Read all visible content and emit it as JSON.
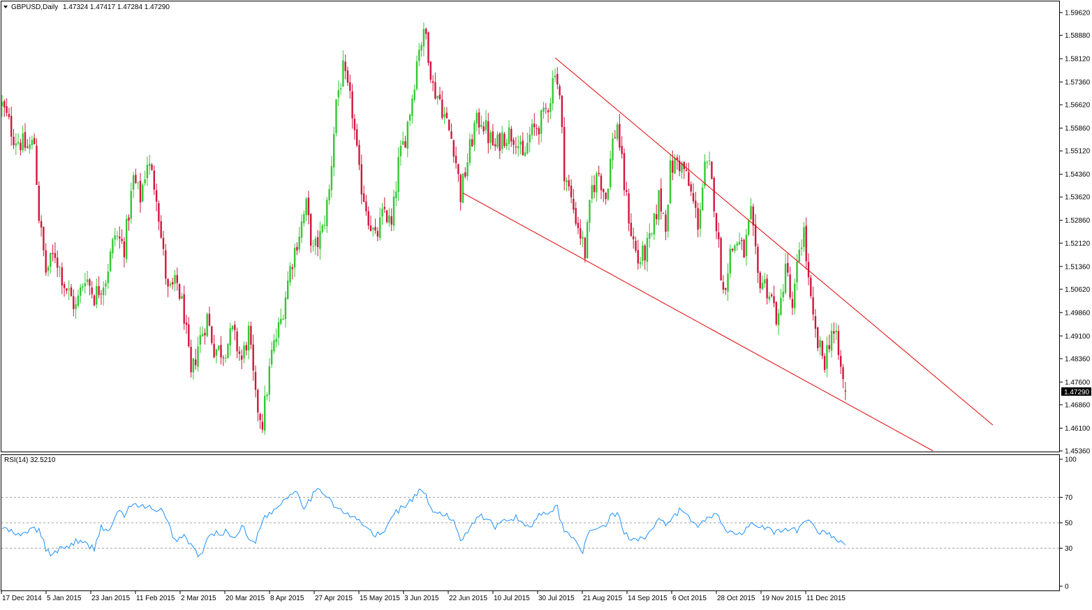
{
  "header": {
    "symbol_line": "GBPUSD,Daily",
    "ohlc": "1.47324 1.47417 1.47284 1.47290",
    "current_price": "1.47290"
  },
  "rsi_header": {
    "label": "RSI(14) 32.5210"
  },
  "colors": {
    "bull": "#32c832",
    "bear": "#d2143c",
    "trendline": "#e00000",
    "rsi": "#1e90ff",
    "frame": "#000000",
    "grid_dash": "#a0a0a0"
  },
  "chart_data": [
    {
      "type": "candlestick",
      "title": "GBPUSD,Daily",
      "y_ticks": [
        "1.59620",
        "1.58880",
        "1.58120",
        "1.57360",
        "1.56620",
        "1.55860",
        "1.55120",
        "1.54360",
        "1.53620",
        "1.52860",
        "1.52120",
        "1.51360",
        "1.50620",
        "1.49860",
        "1.49100",
        "1.48360",
        "1.47600",
        "1.46860",
        "1.46100",
        "1.45360"
      ],
      "ylim": [
        1.4536,
        1.5962
      ],
      "x_tick_labels": [
        "17 Dec 2014",
        "5 Jan 2015",
        "23 Jan 2015",
        "11 Feb 2015",
        "2 Mar 2015",
        "20 Mar 2015",
        "8 Apr 2015",
        "27 Apr 2015",
        "15 May 2015",
        "3 Jun 2015",
        "22 Jun 2015",
        "10 Jul 2015",
        "30 Jul 2015",
        "21 Aug 2015",
        "14 Sep 2015",
        "6 Oct 2015",
        "28 Oct 2015",
        "19 Nov 2015",
        "11 Dec 2015"
      ],
      "last_close": 1.4729,
      "anchors": [
        [
          0,
          1.566
        ],
        [
          5,
          1.556
        ],
        [
          11,
          1.552
        ],
        [
          14,
          1.554
        ],
        [
          16,
          1.53
        ],
        [
          19,
          1.512
        ],
        [
          23,
          1.518
        ],
        [
          27,
          1.508
        ],
        [
          32,
          1.5
        ],
        [
          36,
          1.511
        ],
        [
          40,
          1.504
        ],
        [
          45,
          1.51
        ],
        [
          49,
          1.524
        ],
        [
          53,
          1.52
        ],
        [
          57,
          1.542
        ],
        [
          60,
          1.536
        ],
        [
          63,
          1.548
        ],
        [
          67,
          1.538
        ],
        [
          69,
          1.523
        ],
        [
          72,
          1.505
        ],
        [
          76,
          1.508
        ],
        [
          79,
          1.498
        ],
        [
          82,
          1.477
        ],
        [
          85,
          1.488
        ],
        [
          89,
          1.497
        ],
        [
          92,
          1.487
        ],
        [
          96,
          1.486
        ],
        [
          100,
          1.492
        ],
        [
          104,
          1.483
        ],
        [
          107,
          1.492
        ],
        [
          110,
          1.47
        ],
        [
          113,
          1.463
        ],
        [
          117,
          1.485
        ],
        [
          121,
          1.496
        ],
        [
          125,
          1.513
        ],
        [
          128,
          1.522
        ],
        [
          132,
          1.533
        ],
        [
          135,
          1.518
        ],
        [
          139,
          1.525
        ],
        [
          142,
          1.538
        ],
        [
          145,
          1.568
        ],
        [
          148,
          1.577
        ],
        [
          152,
          1.564
        ],
        [
          155,
          1.543
        ],
        [
          159,
          1.53
        ],
        [
          162,
          1.522
        ],
        [
          166,
          1.532
        ],
        [
          169,
          1.526
        ],
        [
          172,
          1.547
        ],
        [
          175,
          1.556
        ],
        [
          178,
          1.569
        ],
        [
          181,
          1.586
        ],
        [
          184,
          1.589
        ],
        [
          187,
          1.572
        ],
        [
          190,
          1.568
        ],
        [
          193,
          1.56
        ],
        [
          196,
          1.553
        ],
        [
          199,
          1.537
        ],
        [
          202,
          1.548
        ],
        [
          205,
          1.559
        ],
        [
          208,
          1.562
        ],
        [
          211,
          1.556
        ],
        [
          214,
          1.552
        ],
        [
          217,
          1.556
        ],
        [
          220,
          1.557
        ],
        [
          223,
          1.556
        ],
        [
          226,
          1.548
        ],
        [
          229,
          1.556
        ],
        [
          232,
          1.559
        ],
        [
          235,
          1.562
        ],
        [
          238,
          1.569
        ],
        [
          240,
          1.579
        ],
        [
          242,
          1.568
        ],
        [
          244,
          1.545
        ],
        [
          247,
          1.535
        ],
        [
          250,
          1.527
        ],
        [
          253,
          1.518
        ],
        [
          256,
          1.539
        ],
        [
          259,
          1.544
        ],
        [
          262,
          1.536
        ],
        [
          265,
          1.554
        ],
        [
          267,
          1.56
        ],
        [
          270,
          1.54
        ],
        [
          273,
          1.525
        ],
        [
          276,
          1.515
        ],
        [
          279,
          1.518
        ],
        [
          282,
          1.523
        ],
        [
          285,
          1.536
        ],
        [
          288,
          1.528
        ],
        [
          290,
          1.545
        ],
        [
          293,
          1.548
        ],
        [
          296,
          1.545
        ],
        [
          299,
          1.537
        ],
        [
          302,
          1.528
        ],
        [
          305,
          1.545
        ],
        [
          307,
          1.545
        ],
        [
          309,
          1.535
        ],
        [
          311,
          1.52
        ],
        [
          313,
          1.505
        ],
        [
          316,
          1.518
        ],
        [
          319,
          1.522
        ],
        [
          322,
          1.518
        ],
        [
          325,
          1.53
        ],
        [
          328,
          1.51
        ],
        [
          331,
          1.508
        ],
        [
          334,
          1.503
        ],
        [
          337,
          1.495
        ],
        [
          340,
          1.515
        ],
        [
          343,
          1.498
        ],
        [
          346,
          1.52
        ],
        [
          348,
          1.525
        ],
        [
          350,
          1.508
        ],
        [
          352,
          1.495
        ],
        [
          354,
          1.488
        ],
        [
          357,
          1.483
        ],
        [
          360,
          1.493
        ],
        [
          362,
          1.489
        ],
        [
          364,
          1.48
        ],
        [
          366,
          1.4729
        ]
      ],
      "trendlines": [
        {
          "name": "upper",
          "from": [
            240,
            1.5815
          ],
          "to": [
            430,
            1.462
          ]
        },
        {
          "name": "lower",
          "from": [
            200,
            1.5375
          ],
          "to": [
            404,
            1.4536
          ]
        }
      ]
    },
    {
      "type": "line",
      "title": "RSI(14) 32.5210",
      "ylim": [
        0,
        100
      ],
      "y_ticks": [
        "100",
        "70",
        "50",
        "30",
        "0"
      ],
      "levels": [
        70,
        50,
        30
      ],
      "last_value": 32.521,
      "anchors": [
        [
          0,
          46
        ],
        [
          5,
          42
        ],
        [
          8,
          39
        ],
        [
          12,
          45
        ],
        [
          16,
          44
        ],
        [
          19,
          30
        ],
        [
          22,
          23
        ],
        [
          25,
          31
        ],
        [
          28,
          30
        ],
        [
          32,
          36
        ],
        [
          36,
          33
        ],
        [
          40,
          30
        ],
        [
          43,
          47
        ],
        [
          47,
          43
        ],
        [
          50,
          60
        ],
        [
          53,
          56
        ],
        [
          56,
          64
        ],
        [
          60,
          62
        ],
        [
          63,
          64
        ],
        [
          66,
          58
        ],
        [
          69,
          60
        ],
        [
          72,
          50
        ],
        [
          75,
          36
        ],
        [
          79,
          40
        ],
        [
          83,
          30
        ],
        [
          86,
          23
        ],
        [
          90,
          40
        ],
        [
          94,
          42
        ],
        [
          98,
          43
        ],
        [
          101,
          37
        ],
        [
          104,
          49
        ],
        [
          107,
          36
        ],
        [
          110,
          36
        ],
        [
          113,
          53
        ],
        [
          117,
          58
        ],
        [
          121,
          66
        ],
        [
          125,
          72
        ],
        [
          128,
          76
        ],
        [
          131,
          62
        ],
        [
          135,
          72
        ],
        [
          138,
          76
        ],
        [
          141,
          72
        ],
        [
          145,
          62
        ],
        [
          148,
          58
        ],
        [
          152,
          54
        ],
        [
          155,
          52
        ],
        [
          158,
          46
        ],
        [
          162,
          40
        ],
        [
          166,
          42
        ],
        [
          169,
          56
        ],
        [
          172,
          60
        ],
        [
          175,
          64
        ],
        [
          178,
          68
        ],
        [
          181,
          75
        ],
        [
          184,
          70
        ],
        [
          187,
          57
        ],
        [
          190,
          58
        ],
        [
          193,
          55
        ],
        [
          196,
          52
        ],
        [
          199,
          36
        ],
        [
          202,
          44
        ],
        [
          205,
          52
        ],
        [
          208,
          56
        ],
        [
          211,
          52
        ],
        [
          214,
          46
        ],
        [
          217,
          54
        ],
        [
          220,
          52
        ],
        [
          223,
          54
        ],
        [
          226,
          50
        ],
        [
          229,
          46
        ],
        [
          232,
          54
        ],
        [
          235,
          59
        ],
        [
          238,
          59
        ],
        [
          241,
          62
        ],
        [
          243,
          48
        ],
        [
          246,
          40
        ],
        [
          249,
          37
        ],
        [
          252,
          28
        ],
        [
          255,
          42
        ],
        [
          258,
          47
        ],
        [
          261,
          46
        ],
        [
          264,
          54
        ],
        [
          267,
          58
        ],
        [
          270,
          42
        ],
        [
          273,
          38
        ],
        [
          276,
          38
        ],
        [
          279,
          39
        ],
        [
          282,
          44
        ],
        [
          285,
          52
        ],
        [
          288,
          48
        ],
        [
          291,
          53
        ],
        [
          294,
          60
        ],
        [
          297,
          56
        ],
        [
          300,
          50
        ],
        [
          303,
          48
        ],
        [
          306,
          54
        ],
        [
          309,
          57
        ],
        [
          312,
          52
        ],
        [
          315,
          43
        ],
        [
          318,
          41
        ],
        [
          321,
          42
        ],
        [
          324,
          49
        ],
        [
          327,
          46
        ],
        [
          330,
          47
        ],
        [
          333,
          44
        ],
        [
          336,
          42
        ],
        [
          339,
          44
        ],
        [
          342,
          43
        ],
        [
          345,
          44
        ],
        [
          348,
          49
        ],
        [
          351,
          51
        ],
        [
          354,
          44
        ],
        [
          357,
          42
        ],
        [
          360,
          40
        ],
        [
          363,
          36
        ],
        [
          366,
          32.5
        ]
      ]
    }
  ]
}
